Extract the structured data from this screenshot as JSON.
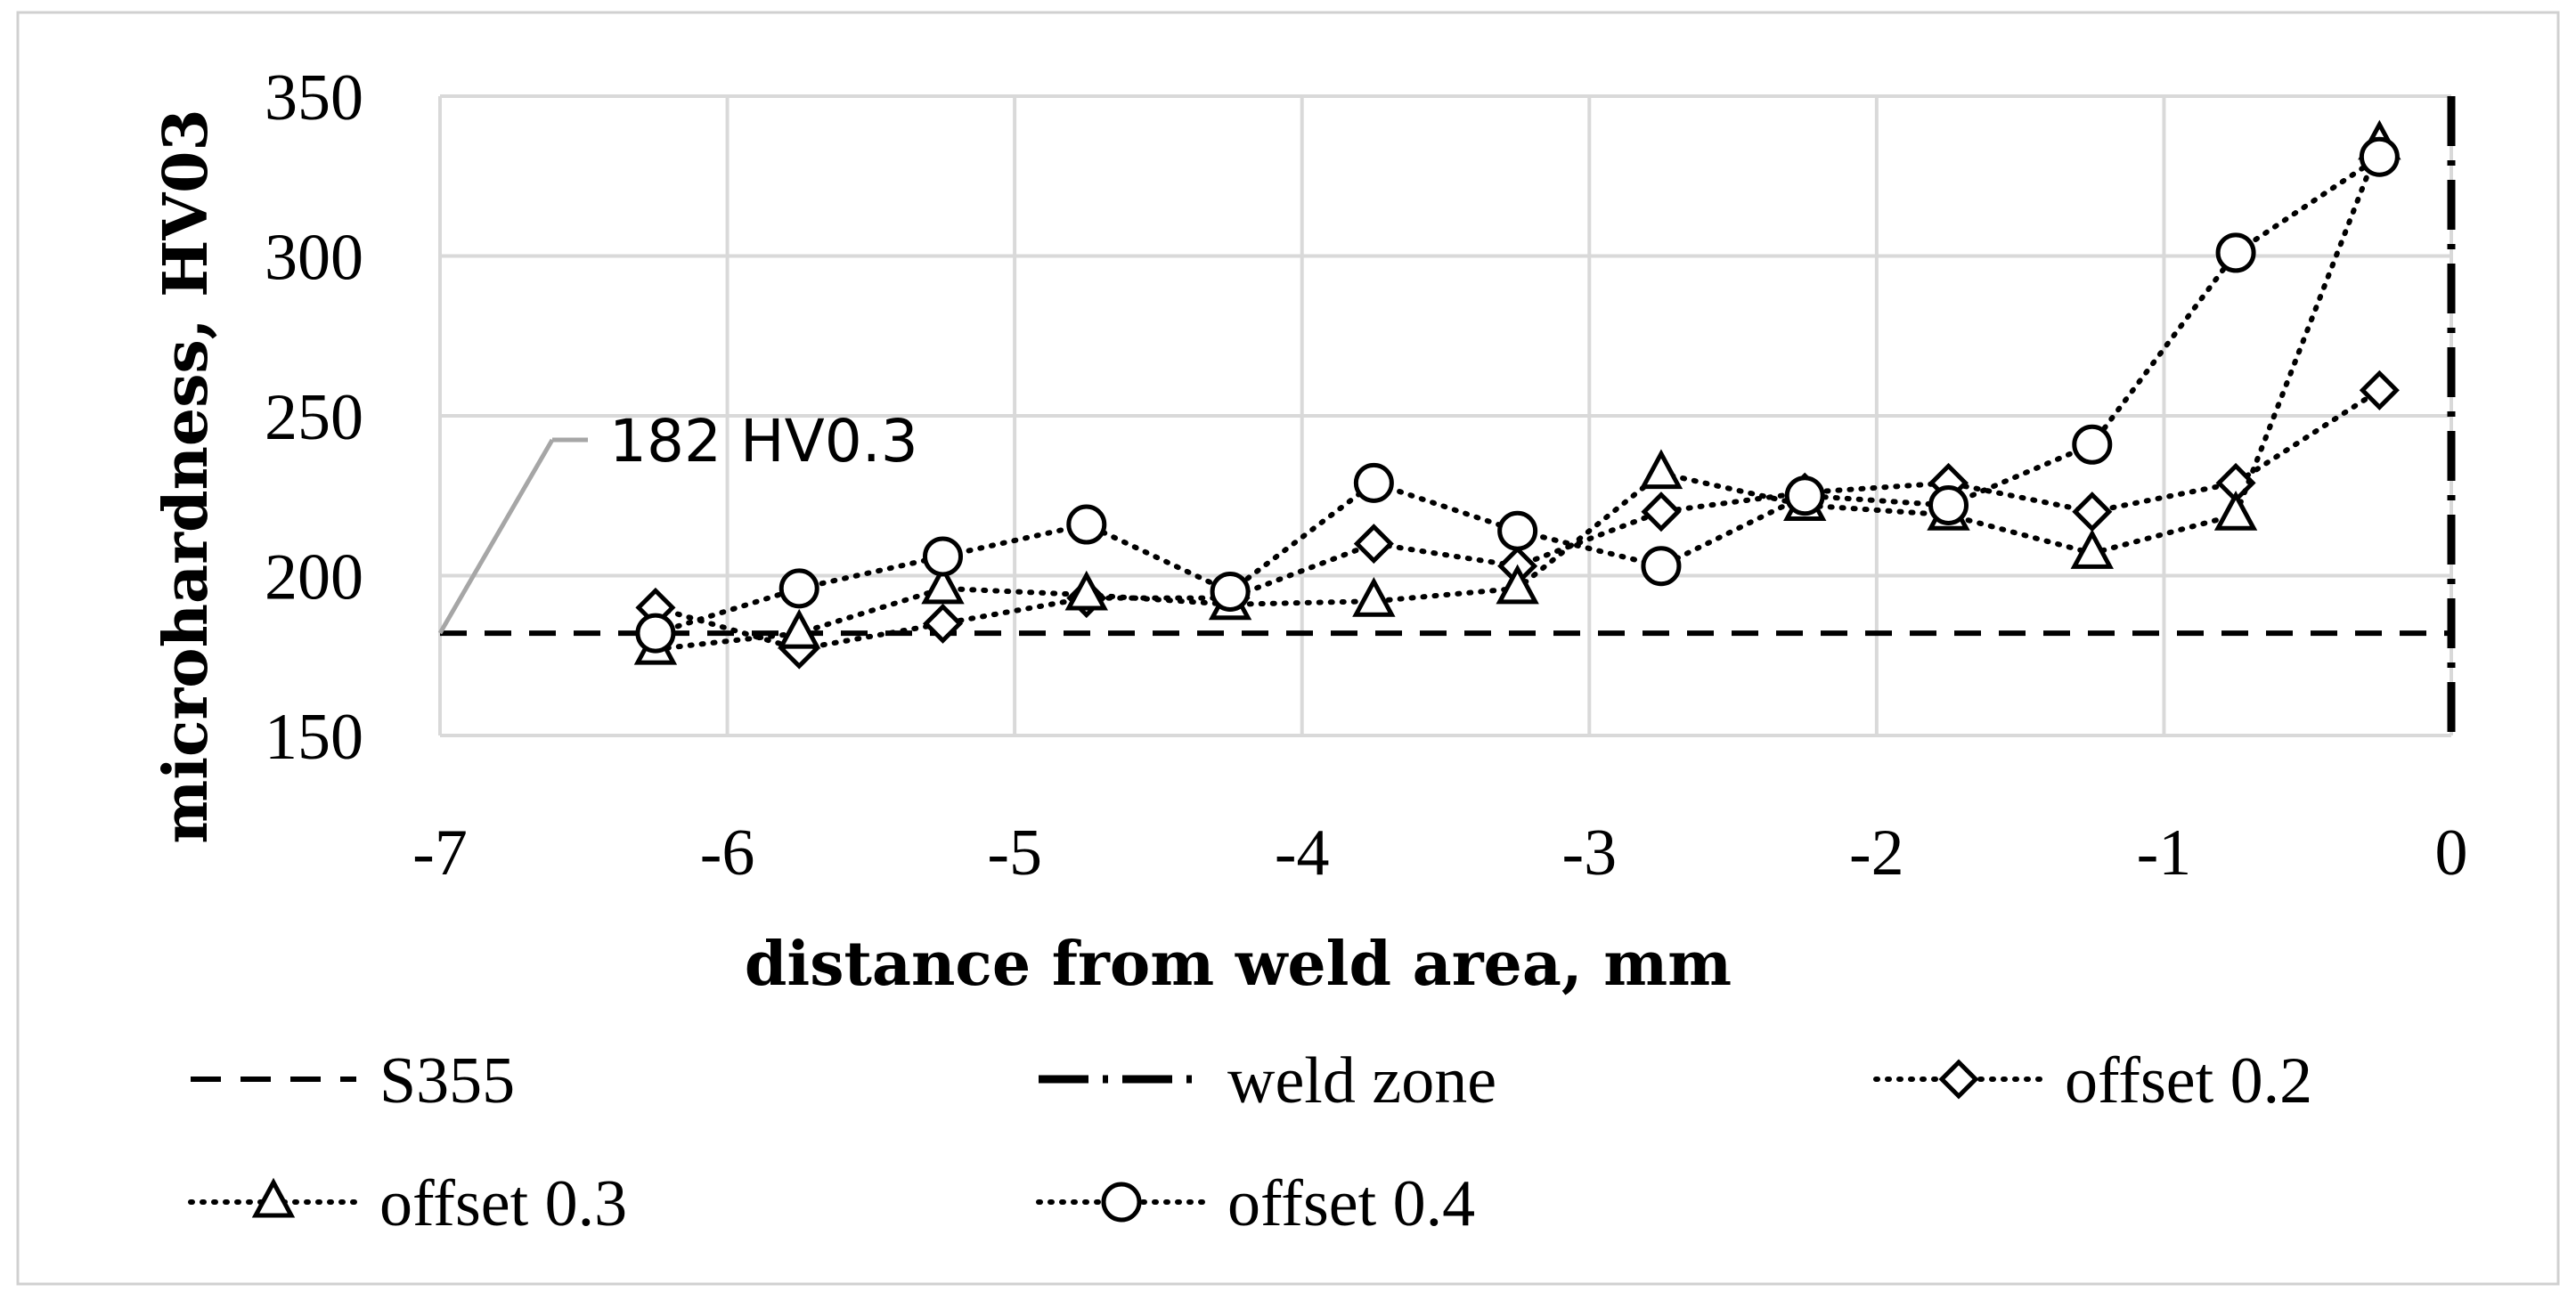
{
  "chart_data": {
    "type": "line",
    "title": "",
    "xlabel": "distance from weld area, mm",
    "ylabel": "microhardness, HV03",
    "xlim": [
      -7,
      0
    ],
    "ylim": [
      150,
      350
    ],
    "xticks": [
      "-7",
      "-6",
      "-5",
      "-4",
      "-3",
      "-2",
      "-1",
      "0"
    ],
    "yticks": [
      "150",
      "200",
      "250",
      "300",
      "350"
    ],
    "grid": true,
    "legend_position": "bottom",
    "reference_lines": [
      {
        "name": "S355",
        "orientation": "horizontal",
        "value": 182,
        "style": "dashed"
      },
      {
        "name": "weld zone",
        "orientation": "vertical",
        "value": 0,
        "style": "dash-dot"
      }
    ],
    "annotation": {
      "text": "182 HV0.3",
      "target_x": -7,
      "target_y": 182
    },
    "series": [
      {
        "name": "offset 0.2",
        "marker": "diamond",
        "x": [
          -6.25,
          -5.75,
          -5.25,
          -4.75,
          -4.25,
          -3.75,
          -3.25,
          -2.75,
          -2.25,
          -1.75,
          -1.25,
          -0.75,
          -0.25
        ],
        "y": [
          190,
          177,
          185,
          193,
          193,
          210,
          203,
          220,
          226,
          229,
          220,
          229,
          258
        ]
      },
      {
        "name": "offset 0.3",
        "marker": "triangle",
        "x": [
          -6.25,
          -5.75,
          -5.25,
          -4.75,
          -4.25,
          -3.75,
          -3.25,
          -2.75,
          -2.25,
          -1.75,
          -1.25,
          -0.75,
          -0.25
        ],
        "y": [
          177,
          182,
          196,
          194,
          191,
          192,
          196,
          232,
          222,
          219,
          207,
          219,
          335
        ]
      },
      {
        "name": "offset 0.4",
        "marker": "circle",
        "x": [
          -6.25,
          -5.75,
          -5.25,
          -4.75,
          -4.25,
          -3.75,
          -3.25,
          -2.75,
          -2.25,
          -1.75,
          -1.25,
          -0.75,
          -0.25
        ],
        "y": [
          182,
          196,
          206,
          216,
          195,
          229,
          214,
          203,
          225,
          222,
          241,
          301,
          331
        ]
      }
    ]
  }
}
